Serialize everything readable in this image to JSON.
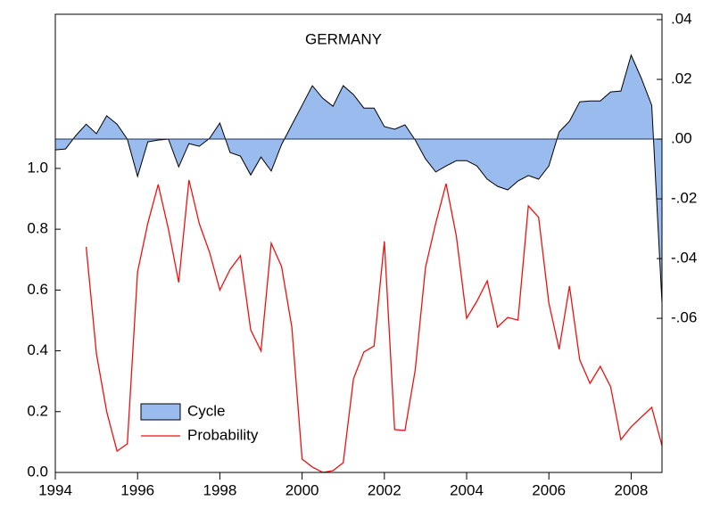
{
  "chart_data": {
    "type": "line",
    "title": "GERMANY",
    "x": [
      1994,
      1994.25,
      1994.5,
      1994.75,
      1995,
      1995.25,
      1995.5,
      1995.75,
      1996,
      1996.25,
      1996.5,
      1996.75,
      1997,
      1997.25,
      1997.5,
      1997.75,
      1998,
      1998.25,
      1998.5,
      1998.75,
      1999,
      1999.25,
      1999.5,
      1999.75,
      2000,
      2000.25,
      2000.5,
      2000.75,
      2001,
      2001.25,
      2001.5,
      2001.75,
      2002,
      2002.25,
      2002.5,
      2002.75,
      2003,
      2003.25,
      2003.5,
      2003.75,
      2004,
      2004.25,
      2004.5,
      2004.75,
      2005,
      2005.25,
      2005.5,
      2005.75,
      2006,
      2006.25,
      2006.5,
      2006.75,
      2007,
      2007.25,
      2007.5,
      2007.75,
      2008,
      2008.25,
      2008.5,
      2008.75
    ],
    "series": [
      {
        "name": "Cycle",
        "kind": "area",
        "axis": "y2",
        "color": "#99bbee",
        "line_color": "#000000",
        "values": [
          -0.0036,
          -0.0033,
          0.0012,
          0.005,
          0.0018,
          0.0078,
          0.005,
          0,
          -0.0125,
          -0.0009,
          -0.0003,
          0,
          -0.0093,
          -0.0015,
          -0.0024,
          0.0003,
          0.0054,
          -0.0045,
          -0.0057,
          -0.012,
          -0.006,
          -0.0107,
          -0.0018,
          0.0048,
          0.0113,
          0.0179,
          0.0137,
          0.011,
          0.0179,
          0.0149,
          0.0104,
          0.0104,
          0.0042,
          0.0033,
          0.0048,
          -0.0003,
          -0.0066,
          -0.011,
          -0.009,
          -0.0072,
          -0.0072,
          -0.009,
          -0.0134,
          -0.0158,
          -0.017,
          -0.014,
          -0.0122,
          -0.0134,
          -0.009,
          0.0024,
          0.006,
          0.0125,
          0.0128,
          0.0128,
          0.0158,
          0.0161,
          0.0281,
          0.0203,
          0.0113,
          -0.055
        ]
      },
      {
        "name": "Probability",
        "kind": "line",
        "color": "#ee1111",
        "values": [
          null,
          null,
          null,
          0.742,
          0.39,
          0.2,
          0.07,
          0.094,
          0.66,
          0.82,
          0.947,
          0.8,
          0.625,
          0.962,
          0.818,
          0.724,
          0.6,
          0.668,
          0.713,
          0.469,
          0.4,
          0.754,
          0.677,
          0.478,
          0.044,
          0.018,
          0.0,
          0.006,
          0.032,
          0.308,
          0.396,
          0.416,
          0.76,
          0.141,
          0.138,
          0.337,
          0.674,
          0.82,
          0.95,
          0.777,
          0.507,
          0.563,
          0.63,
          0.478,
          0.51,
          0.501,
          0.877,
          0.839,
          0.557,
          0.405,
          0.613,
          0.37,
          0.293,
          0.349,
          0.282,
          0.108,
          0.15,
          0.182,
          0.214,
          0.088
        ]
      }
    ],
    "xlim": [
      1994,
      2008.75
    ],
    "xticks": [
      1994,
      1996,
      1998,
      2000,
      2002,
      2004,
      2006,
      2008
    ],
    "ylim": [
      0,
      1.507
    ],
    "yticks": [
      {
        "value": 0,
        "label": "0.0"
      },
      {
        "value": 0.2,
        "label": "0.2"
      },
      {
        "value": 0.4,
        "label": "0.4"
      },
      {
        "value": 0.6,
        "label": "0.6"
      },
      {
        "value": 0.8,
        "label": "0.8"
      },
      {
        "value": 1,
        "label": "1.0"
      }
    ],
    "y2lim": [
      -0.1116,
      0.0418
    ],
    "y2ticks": [
      {
        "value": 0.04,
        "label": ".04"
      },
      {
        "value": 0.02,
        "label": ".02"
      },
      {
        "value": 0,
        "label": ".00"
      },
      {
        "value": -0.02,
        "label": "-.02"
      },
      {
        "value": -0.04,
        "label": "-.04"
      },
      {
        "value": -0.06,
        "label": "-.06"
      }
    ],
    "legend": "lower left"
  }
}
